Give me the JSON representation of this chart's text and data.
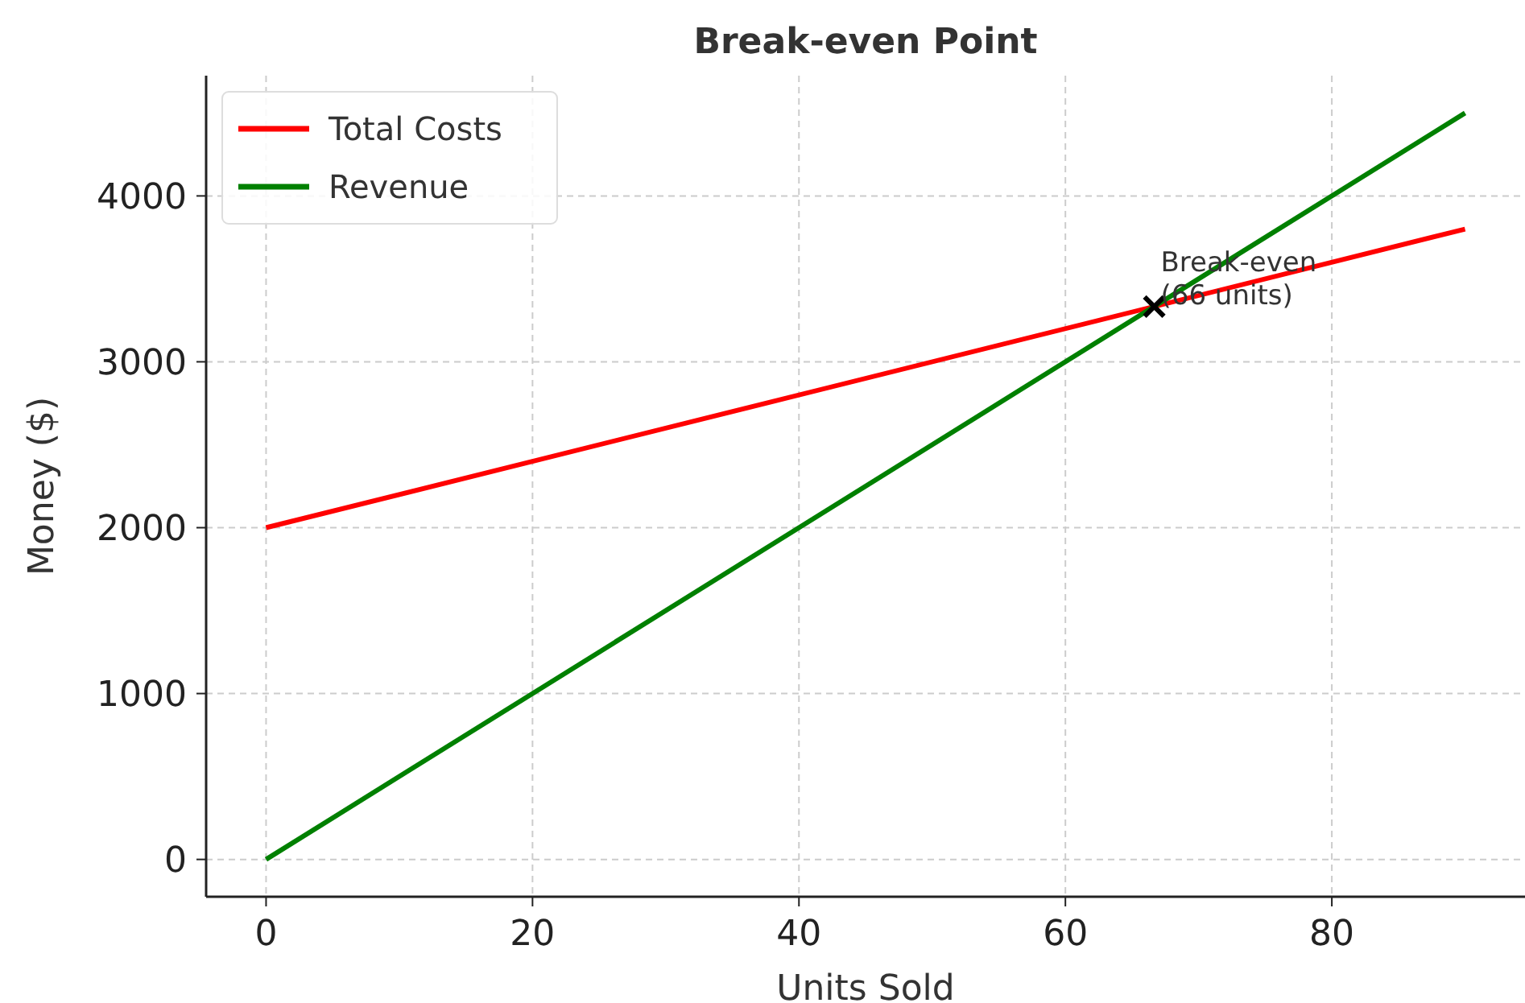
{
  "chart_data": {
    "type": "line",
    "title": "Break-even Point",
    "xlabel": "Units Sold",
    "ylabel": "Money ($)",
    "xlim": [
      -4.5,
      94.5
    ],
    "ylim": [
      -225,
      4725
    ],
    "xticks": [
      0,
      20,
      40,
      60,
      80
    ],
    "yticks": [
      0,
      1000,
      2000,
      3000,
      4000
    ],
    "grid": true,
    "legend": "top left",
    "line_style": "solid",
    "series": [
      {
        "name": "Total Costs",
        "color": "#ff0000",
        "x": [
          0,
          90
        ],
        "values": [
          2000,
          3800
        ]
      },
      {
        "name": "Revenue",
        "color": "#008000",
        "x": [
          0,
          90
        ],
        "values": [
          0,
          4500
        ]
      },
      {
        "type": "scatter",
        "marker": "cross",
        "color": "#000000",
        "x": [
          66.67
        ],
        "values": [
          3333
        ]
      }
    ],
    "annotations": [
      {
        "text": "Break-even\n(66 units)",
        "x": 66.67,
        "y": 3333
      }
    ]
  }
}
